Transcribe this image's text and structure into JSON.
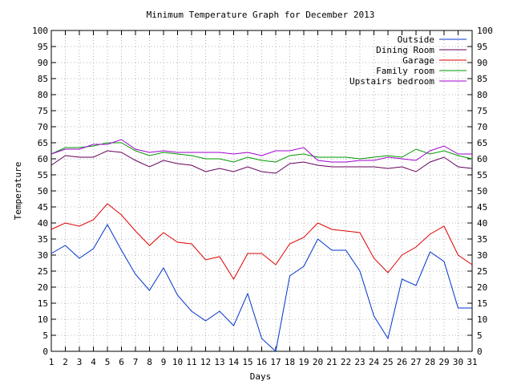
{
  "chart_data": {
    "type": "line",
    "title": "Minimum Temperature Graph for December 2013",
    "xlabel": "Days",
    "ylabel": "Temperature",
    "xlim": [
      1,
      31
    ],
    "ylim": [
      0,
      100
    ],
    "x_ticks": [
      1,
      2,
      3,
      4,
      5,
      6,
      7,
      8,
      9,
      10,
      11,
      12,
      13,
      14,
      15,
      16,
      17,
      18,
      19,
      20,
      21,
      22,
      23,
      24,
      25,
      26,
      27,
      28,
      29,
      30,
      31
    ],
    "y_ticks": [
      0,
      5,
      10,
      15,
      20,
      25,
      30,
      35,
      40,
      45,
      50,
      55,
      60,
      65,
      70,
      75,
      80,
      85,
      90,
      95,
      100
    ],
    "grid": true,
    "legend_position": "top-right",
    "x": [
      1,
      2,
      3,
      4,
      5,
      6,
      7,
      8,
      9,
      10,
      11,
      12,
      13,
      14,
      15,
      16,
      17,
      18,
      19,
      20,
      21,
      22,
      23,
      24,
      25,
      26,
      27,
      28,
      29,
      30,
      31
    ],
    "series": [
      {
        "name": "Outside",
        "color": "#0033cc",
        "values": [
          30.5,
          33,
          29,
          32,
          39.5,
          31.5,
          24,
          19,
          26,
          17.5,
          12.5,
          9.5,
          12.5,
          8,
          18,
          4,
          0,
          23.5,
          26.5,
          35,
          31.5,
          31.5,
          25,
          11,
          4,
          22.5,
          20.5,
          31,
          28,
          13.5,
          13.5
        ]
      },
      {
        "name": "Dining Room",
        "color": "#66005a",
        "values": [
          58,
          61,
          60.5,
          60.5,
          62.5,
          62,
          59.5,
          57.5,
          59.5,
          58.5,
          58,
          56,
          57,
          56,
          57.5,
          56,
          55.5,
          58.5,
          59,
          58,
          57.5,
          57.5,
          57.5,
          57.5,
          57,
          57.5,
          56,
          59,
          60.5,
          57.5,
          57
        ]
      },
      {
        "name": "Garage",
        "color": "#e00000",
        "values": [
          38,
          40,
          39,
          41,
          46,
          42.5,
          37.5,
          33,
          37,
          34,
          33.5,
          28.5,
          29.5,
          22.5,
          30.5,
          30.5,
          27,
          33.5,
          35.5,
          40,
          38,
          37.5,
          37,
          29,
          24.5,
          30,
          32.5,
          36.5,
          39,
          30,
          27
        ]
      },
      {
        "name": "Family room",
        "color": "#009900",
        "values": [
          61.5,
          63.5,
          63.5,
          64,
          65,
          65,
          62.5,
          61,
          62,
          61.5,
          61,
          60,
          60,
          59,
          60.5,
          59.5,
          59,
          61,
          61.5,
          60.5,
          60.5,
          60.5,
          60,
          60.5,
          61,
          60.5,
          63,
          61.5,
          62.5,
          61,
          60
        ]
      },
      {
        "name": "Upstairs bedroom",
        "color": "#a000d0",
        "values": [
          61.5,
          63,
          63,
          64.5,
          64.5,
          66,
          63,
          62,
          62.5,
          62,
          62,
          62,
          62,
          61.5,
          62,
          61,
          62.5,
          62.5,
          63.5,
          59.5,
          59,
          59,
          59.5,
          59.5,
          60.5,
          60,
          59.5,
          62.5,
          64,
          61.5,
          61.5
        ]
      }
    ]
  }
}
